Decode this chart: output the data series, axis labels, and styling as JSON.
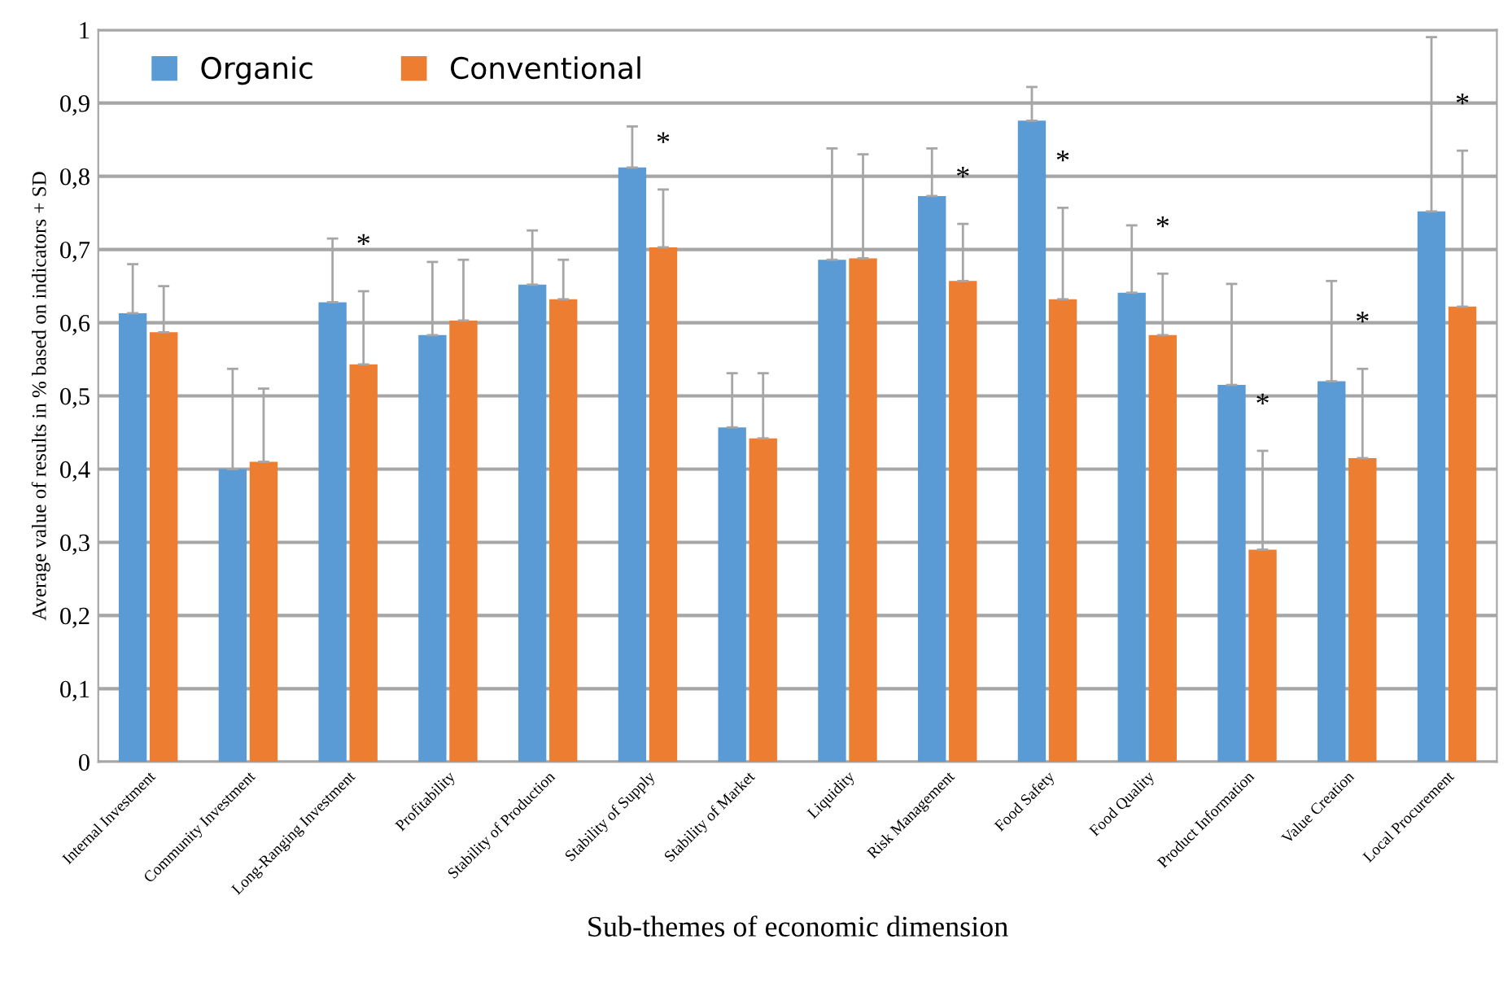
{
  "chart_data": {
    "type": "bar",
    "xlabel": "Sub-themes of economic dimension",
    "ylabel": "Average value of results in % based on indicators + SD",
    "categories": [
      "Internal Investment",
      "Community Investment",
      "Long-Ranging Investment",
      "Profitability",
      "Stability of Production",
      "Stability of Supply",
      "Stability of Market",
      "Liquidity",
      "Risk Management",
      "Food Safety",
      "Food Quality",
      "Product Information",
      "Value Creation",
      "Local Procurement"
    ],
    "series": [
      {
        "name": "Organic",
        "color": "#5b9bd5",
        "values": [
          0.613,
          0.4,
          0.628,
          0.583,
          0.652,
          0.812,
          0.457,
          0.686,
          0.773,
          0.876,
          0.641,
          0.515,
          0.52,
          0.752
        ],
        "errors": [
          [
            0.613,
            0.68
          ],
          [
            0.4,
            0.537
          ],
          [
            0.628,
            0.715
          ],
          [
            0.583,
            0.683
          ],
          [
            0.652,
            0.726
          ],
          [
            0.812,
            0.868
          ],
          [
            0.457,
            0.531
          ],
          [
            0.686,
            0.838
          ],
          [
            0.773,
            0.838
          ],
          [
            0.876,
            0.922
          ],
          [
            0.641,
            0.733
          ],
          [
            0.515,
            0.653
          ],
          [
            0.52,
            0.657
          ],
          [
            0.752,
            0.99
          ]
        ]
      },
      {
        "name": "Conventional",
        "color": "#ed7d31",
        "values": [
          0.587,
          0.41,
          0.543,
          0.603,
          0.632,
          0.703,
          0.442,
          0.688,
          0.657,
          0.632,
          0.583,
          0.29,
          0.415,
          0.622
        ],
        "errors": [
          [
            0.587,
            0.65
          ],
          [
            0.41,
            0.51
          ],
          [
            0.543,
            0.643
          ],
          [
            0.603,
            0.686
          ],
          [
            0.632,
            0.686
          ],
          [
            0.703,
            0.782
          ],
          [
            0.442,
            0.531
          ],
          [
            0.688,
            0.83
          ],
          [
            0.657,
            0.735
          ],
          [
            0.632,
            0.757
          ],
          [
            0.583,
            0.667
          ],
          [
            0.29,
            0.425
          ],
          [
            0.415,
            0.537
          ],
          [
            0.622,
            0.835
          ]
        ]
      }
    ],
    "ylim": [
      0,
      1
    ],
    "yticks": [
      0,
      {
        "value": 0.1,
        "label": "0,1"
      },
      {
        "value": 0.2,
        "label": "0,2"
      },
      {
        "value": 0.3,
        "label": "0,3"
      },
      {
        "value": 0.4,
        "label": "0,4"
      },
      {
        "value": 0.5,
        "label": "0,5"
      },
      {
        "value": 0.6,
        "label": "0,6"
      },
      {
        "value": 0.7,
        "label": "0,7"
      },
      {
        "value": 0.8,
        "label": "0,8"
      },
      {
        "value": 0.9,
        "label": "0,9"
      },
      1
    ],
    "grid": "y",
    "legend": "top left",
    "annotations": [
      {
        "text": "*",
        "x": "Long-Ranging Investment",
        "y": 0.643
      },
      {
        "text": "*",
        "x": "Stability of Supply",
        "y": 0.782
      },
      {
        "text": "*",
        "x": "Risk Management",
        "y": 0.735
      },
      {
        "text": "*",
        "x": "Food Safety",
        "y": 0.757
      },
      {
        "text": "*",
        "x": "Food Quality",
        "y": 0.667
      },
      {
        "text": "*",
        "x": "Product Information",
        "y": 0.425
      },
      {
        "text": "*",
        "x": "Value Creation",
        "y": 0.537
      },
      {
        "text": "*",
        "x": "Local Procurement",
        "y": 0.835
      }
    ]
  }
}
